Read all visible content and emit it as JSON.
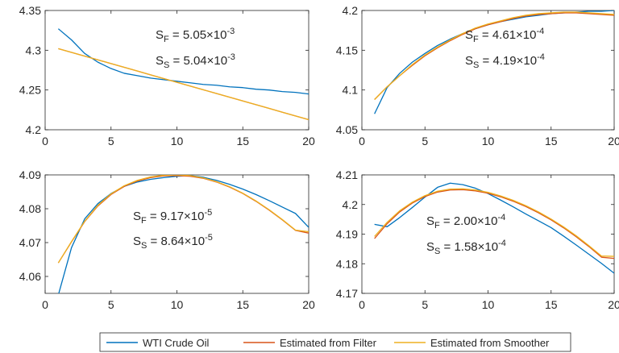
{
  "colors": {
    "wti": "#0072BD",
    "filter": "#D95319",
    "smoother": "#EDB120",
    "axis": "#262626",
    "background": "#ffffff"
  },
  "legend": {
    "placement": "bottom-center",
    "entries": [
      "WTI Crude Oil",
      "Estimated from Filter",
      "Estimated from Smoother"
    ]
  },
  "chart_data": [
    {
      "type": "line",
      "position": "top-left",
      "xlim": [
        0,
        20
      ],
      "ylim": [
        4.2,
        4.35
      ],
      "xticks": [
        "0",
        "5",
        "10",
        "15",
        "20"
      ],
      "yticks": [
        "4.2",
        "4.25",
        "4.3",
        "4.35"
      ],
      "annotations": [
        {
          "label": "S",
          "sub": "F",
          "text": " = 5.05",
          "exp": "-3"
        },
        {
          "label": "S",
          "sub": "S",
          "text": " = 5.04",
          "exp": "-3"
        }
      ],
      "x": [
        1,
        2,
        3,
        4,
        5,
        6,
        7,
        8,
        9,
        10,
        11,
        12,
        13,
        14,
        15,
        16,
        17,
        18,
        19,
        20
      ],
      "series": [
        {
          "name": "WTI Crude Oil",
          "values": [
            4.327,
            4.313,
            4.296,
            4.285,
            4.277,
            4.271,
            4.268,
            4.265,
            4.263,
            4.261,
            4.259,
            4.257,
            4.256,
            4.254,
            4.253,
            4.251,
            4.25,
            4.248,
            4.247,
            4.245
          ]
        },
        {
          "name": "Estimated from Filter",
          "values": [
            4.302,
            4.2973,
            4.2926,
            4.2879,
            4.2832,
            4.2785,
            4.2738,
            4.2691,
            4.2644,
            4.2597,
            4.255,
            4.2503,
            4.2456,
            4.2409,
            4.2362,
            4.2315,
            4.2268,
            4.2221,
            4.2174,
            4.2127
          ]
        },
        {
          "name": "Estimated from Smoother",
          "values": [
            4.302,
            4.2973,
            4.2926,
            4.2879,
            4.2832,
            4.2785,
            4.2738,
            4.2691,
            4.2644,
            4.2597,
            4.255,
            4.2503,
            4.2456,
            4.2409,
            4.2362,
            4.2315,
            4.2268,
            4.2221,
            4.2174,
            4.2127
          ]
        }
      ]
    },
    {
      "type": "line",
      "position": "top-right",
      "xlim": [
        0,
        20
      ],
      "ylim": [
        4.05,
        4.2
      ],
      "xticks": [
        "0",
        "5",
        "10",
        "15",
        "20"
      ],
      "yticks": [
        "4.05",
        "4.1",
        "4.15",
        "4.2"
      ],
      "annotations": [
        {
          "label": "S",
          "sub": "F",
          "text": " = 4.61",
          "exp": "-4"
        },
        {
          "label": "S",
          "sub": "S",
          "text": " = 4.19",
          "exp": "-4"
        }
      ],
      "x": [
        1,
        2,
        3,
        4,
        5,
        6,
        7,
        8,
        9,
        10,
        11,
        12,
        13,
        14,
        15,
        16,
        17,
        18,
        19,
        20
      ],
      "series": [
        {
          "name": "WTI Crude Oil",
          "values": [
            4.07,
            4.103,
            4.121,
            4.135,
            4.146,
            4.156,
            4.164,
            4.171,
            4.177,
            4.182,
            4.186,
            4.189,
            4.192,
            4.194,
            4.196,
            4.197,
            4.198,
            4.199,
            4.199,
            4.2
          ]
        },
        {
          "name": "Estimated from Filter",
          "values": [
            4.088,
            4.104,
            4.118,
            4.131,
            4.143,
            4.153,
            4.162,
            4.17,
            4.177,
            4.182,
            4.186,
            4.19,
            4.193,
            4.195,
            4.196,
            4.197,
            4.197,
            4.196,
            4.195,
            4.194
          ]
        },
        {
          "name": "Estimated from Smoother",
          "values": [
            4.088,
            4.104,
            4.118,
            4.132,
            4.144,
            4.154,
            4.163,
            4.171,
            4.178,
            4.183,
            4.187,
            4.191,
            4.194,
            4.196,
            4.197,
            4.198,
            4.198,
            4.197,
            4.196,
            4.195
          ]
        }
      ]
    },
    {
      "type": "line",
      "position": "bottom-left",
      "xlim": [
        0,
        20
      ],
      "ylim": [
        4.055,
        4.09
      ],
      "xticks": [
        "0",
        "5",
        "10",
        "15",
        "20"
      ],
      "yticks": [
        "4.06",
        "4.07",
        "4.08",
        "4.09"
      ],
      "annotations": [
        {
          "label": "S",
          "sub": "F",
          "text": " = 9.17",
          "exp": "-5"
        },
        {
          "label": "S",
          "sub": "S",
          "text": " = 8.64",
          "exp": "-5"
        }
      ],
      "x": [
        1,
        2,
        3,
        4,
        5,
        6,
        7,
        8,
        9,
        10,
        11,
        12,
        13,
        14,
        15,
        16,
        17,
        18,
        19,
        20
      ],
      "series": [
        {
          "name": "WTI Crude Oil",
          "values": [
            4.0545,
            4.0685,
            4.077,
            4.0815,
            4.0845,
            4.0866,
            4.0879,
            4.0887,
            4.0892,
            4.0896,
            4.0898,
            4.0893,
            4.0884,
            4.0872,
            4.0858,
            4.0842,
            4.0824,
            4.0805,
            4.0786,
            4.0745
          ]
        },
        {
          "name": "Estimated from Filter",
          "values": [
            4.064,
            4.0702,
            4.0762,
            4.0808,
            4.0842,
            4.0866,
            4.0882,
            4.0892,
            4.0897,
            4.0898,
            4.0896,
            4.089,
            4.0879,
            4.0864,
            4.0845,
            4.0822,
            4.0796,
            4.0767,
            4.0736,
            4.0728
          ]
        },
        {
          "name": "Estimated from Smoother",
          "values": [
            4.064,
            4.0703,
            4.0763,
            4.081,
            4.0844,
            4.0868,
            4.0884,
            4.0894,
            4.0899,
            4.09,
            4.0898,
            4.0891,
            4.088,
            4.0865,
            4.0846,
            4.0823,
            4.0797,
            4.0768,
            4.0737,
            4.0732
          ]
        }
      ]
    },
    {
      "type": "line",
      "position": "bottom-right",
      "xlim": [
        0,
        20
      ],
      "ylim": [
        4.17,
        4.21
      ],
      "xticks": [
        "0",
        "5",
        "10",
        "15",
        "20"
      ],
      "yticks": [
        "4.17",
        "4.18",
        "4.19",
        "4.2",
        "4.21"
      ],
      "annotations": [
        {
          "label": "S",
          "sub": "F",
          "text": " = 2.00",
          "exp": "-4"
        },
        {
          "label": "S",
          "sub": "S",
          "text": " = 1.58",
          "exp": "-4"
        }
      ],
      "x": [
        1,
        2,
        3,
        4,
        5,
        6,
        7,
        8,
        9,
        10,
        11,
        12,
        13,
        14,
        15,
        16,
        17,
        18,
        19,
        20
      ],
      "series": [
        {
          "name": "WTI Crude Oil",
          "values": [
            4.1933,
            4.1925,
            4.1956,
            4.199,
            4.2025,
            4.2058,
            4.2072,
            4.2067,
            4.2055,
            4.2037,
            4.2015,
            4.1992,
            4.1968,
            4.1945,
            4.1922,
            4.1893,
            4.1863,
            4.1832,
            4.1801,
            4.1768
          ]
        },
        {
          "name": "Estimated from Filter",
          "values": [
            4.1885,
            4.1935,
            4.1975,
            4.2005,
            4.2027,
            4.2042,
            4.2049,
            4.205,
            4.2046,
            4.2038,
            4.2026,
            4.2011,
            4.1993,
            4.1972,
            4.1948,
            4.1921,
            4.1891,
            4.1858,
            4.1822,
            4.1818
          ]
        },
        {
          "name": "Estimated from Smoother",
          "values": [
            4.1892,
            4.194,
            4.1979,
            4.2008,
            4.203,
            4.2045,
            4.2052,
            4.2053,
            4.2049,
            4.2041,
            4.2029,
            4.2014,
            4.1996,
            4.1975,
            4.1951,
            4.1924,
            4.1894,
            4.1861,
            4.1826,
            4.1825
          ]
        }
      ]
    }
  ]
}
